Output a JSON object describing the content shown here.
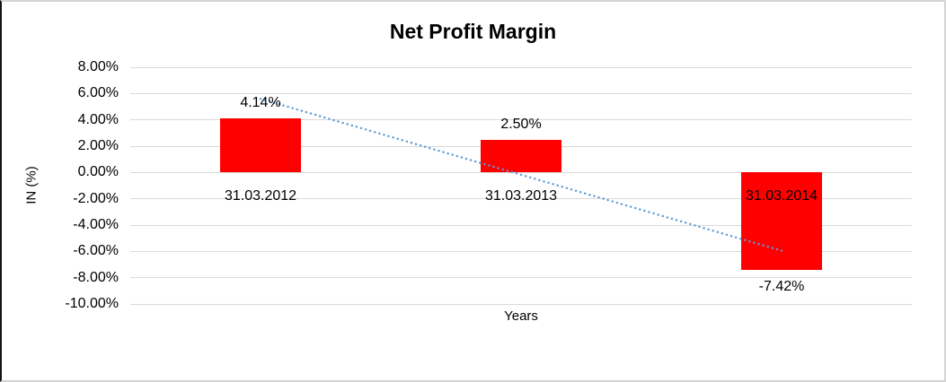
{
  "chart_data": {
    "type": "bar",
    "title": "Net Profit Margin",
    "xlabel": "Years",
    "ylabel": "IN (%)",
    "ylim": [
      -10,
      8
    ],
    "grid": true,
    "legend": false,
    "categories": [
      "31.03.2012",
      "31.03.2013",
      "31.03.2014"
    ],
    "values": [
      4.14,
      2.5,
      -7.42
    ],
    "value_labels": [
      "4.14%",
      "2.50%",
      "-7.42%"
    ],
    "bar_color": "#ff0000",
    "gridline_color": "#d9d9d9",
    "yticks": [
      {
        "value": 8,
        "label": "8.00%"
      },
      {
        "value": 6,
        "label": "6.00%"
      },
      {
        "value": 4,
        "label": "4.00%"
      },
      {
        "value": 2,
        "label": "2.00%"
      },
      {
        "value": 0,
        "label": "0.00%"
      },
      {
        "value": -2,
        "label": "-2.00%"
      },
      {
        "value": -4,
        "label": "-4.00%"
      },
      {
        "value": -6,
        "label": "-6.00%"
      },
      {
        "value": -8,
        "label": "-8.00%"
      },
      {
        "value": -10,
        "label": "-10.00%"
      }
    ],
    "trendline": {
      "type": "linear",
      "style": "dotted",
      "color": "#5b9bd5",
      "start_value": 5.6,
      "end_value": -5.95
    }
  }
}
